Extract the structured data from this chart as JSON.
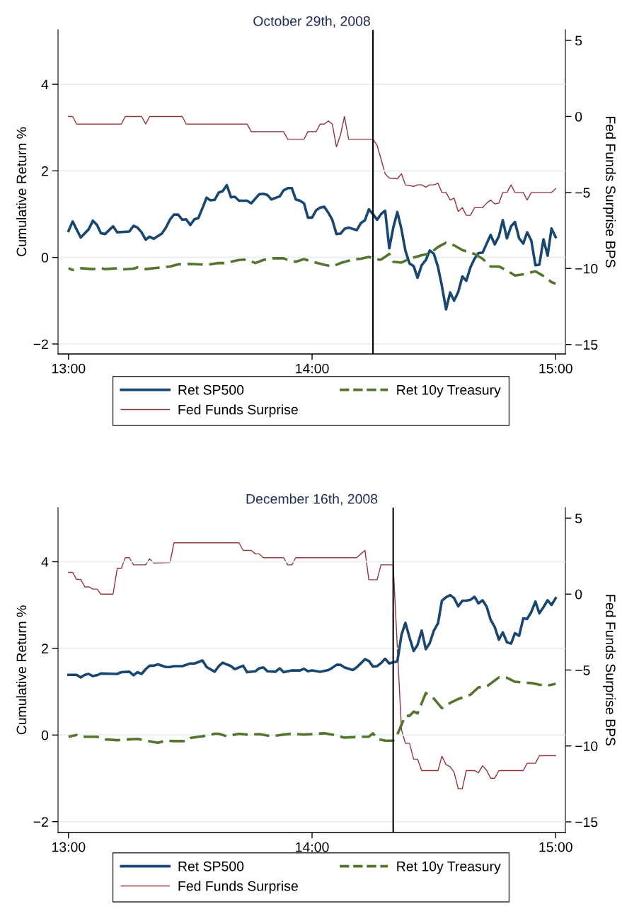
{
  "chart_data": [
    {
      "type": "line",
      "title": "October 29th, 2008",
      "ylabel": "Cumulative Return %",
      "y2label": "Fed Funds Surprise BPS",
      "xlim": [
        12.957,
        15.04
      ],
      "xticks": [
        {
          "value": 13,
          "label": "13:00"
        },
        {
          "value": 14,
          "label": "14:00"
        },
        {
          "value": 15,
          "label": "15:00"
        }
      ],
      "ylim": [
        -2.23,
        5.26
      ],
      "yticks": [
        {
          "value": -2,
          "label": "−2"
        },
        0,
        2,
        4
      ],
      "y2lim": [
        -15.62,
        5.7
      ],
      "y2ticks": [
        {
          "value": -15,
          "label": "−15"
        },
        {
          "value": -10,
          "label": "−10"
        },
        {
          "value": -5,
          "label": "−5"
        },
        0,
        5
      ],
      "grid": "y",
      "legend": "bottom",
      "ref_lines": [
        {
          "axis": "x",
          "value": 14.25,
          "color": "#000000"
        }
      ],
      "series": [
        {
          "name": "Ret SP500",
          "color": "#1a476f",
          "line_style": "solid",
          "x": [
            13,
            13.017,
            13.05,
            13.083,
            13.1,
            13.117,
            13.133,
            13.15,
            13.183,
            13.2,
            13.25,
            13.267,
            13.283,
            13.3,
            13.317,
            13.333,
            13.35,
            13.383,
            13.4,
            13.417,
            13.433,
            13.45,
            13.467,
            13.483,
            13.5,
            13.517,
            13.533,
            13.55,
            13.567,
            13.583,
            13.6,
            13.617,
            13.633,
            13.65,
            13.667,
            13.683,
            13.7,
            13.733,
            13.75,
            13.783,
            13.8,
            13.817,
            13.833,
            13.867,
            13.883,
            13.9,
            13.917,
            13.933,
            13.95,
            13.967,
            13.983,
            14,
            14.017,
            14.033,
            14.05,
            14.067,
            14.083,
            14.1,
            14.117,
            14.133,
            14.15,
            14.183,
            14.2,
            14.217,
            14.233,
            14.25,
            14.267,
            14.283,
            14.3,
            14.317,
            14.333,
            14.35,
            14.367,
            14.383,
            14.4,
            14.417,
            14.433,
            14.45,
            14.467,
            14.483,
            14.5,
            14.517,
            14.533,
            14.55,
            14.567,
            14.583,
            14.6,
            14.617,
            14.633,
            14.65,
            14.667,
            14.683,
            14.7,
            14.717,
            14.733,
            14.75,
            14.767,
            14.783,
            14.8,
            14.817,
            14.833,
            14.85,
            14.867,
            14.883,
            14.9,
            14.917,
            14.933,
            14.95,
            14.967,
            14.983,
            15
          ],
          "values": [
            0.61,
            0.83,
            0.46,
            0.65,
            0.85,
            0.75,
            0.56,
            0.54,
            0.72,
            0.58,
            0.6,
            0.73,
            0.69,
            0.58,
            0.41,
            0.48,
            0.43,
            0.55,
            0.69,
            0.88,
            0.99,
            0.99,
            0.87,
            0.88,
            0.75,
            0.88,
            0.91,
            1.14,
            1.38,
            1.32,
            1.33,
            1.5,
            1.53,
            1.67,
            1.39,
            1.4,
            1.31,
            1.31,
            1.25,
            1.46,
            1.47,
            1.44,
            1.34,
            1.41,
            1.55,
            1.6,
            1.6,
            1.34,
            1.31,
            1.25,
            0.92,
            0.92,
            1.09,
            1.15,
            1.17,
            1.03,
            0.87,
            0.54,
            0.55,
            0.66,
            0.69,
            0.63,
            0.79,
            0.86,
            1.11,
            1.0,
            0.87,
            1.0,
            1.08,
            0.21,
            0.68,
            1.05,
            0.65,
            0.16,
            -0.14,
            -0.2,
            -0.47,
            -0.18,
            -0.06,
            0.16,
            0.08,
            -0.22,
            -0.66,
            -1.2,
            -0.81,
            -1.0,
            -0.8,
            -0.44,
            -0.54,
            -0.23,
            -0.03,
            0.1,
            0.11,
            0.32,
            0.52,
            0.3,
            0.49,
            0.86,
            0.44,
            0.72,
            0.82,
            0.44,
            0.32,
            0.58,
            0.39,
            -0.18,
            -0.17,
            0.42,
            0.04,
            0.67,
            0.47
          ]
        },
        {
          "name": "Ret 10y Treasury",
          "color": "#55752f",
          "line_style": "dashed",
          "x": [
            13,
            13.017,
            13.05,
            13.1,
            13.133,
            13.15,
            13.2,
            13.217,
            13.267,
            13.283,
            13.317,
            13.367,
            13.417,
            13.45,
            13.5,
            13.567,
            13.617,
            13.65,
            13.667,
            13.7,
            13.733,
            13.767,
            13.8,
            13.833,
            13.883,
            13.9,
            13.933,
            13.967,
            14,
            14.05,
            14.083,
            14.117,
            14.167,
            14.2,
            14.233,
            14.267,
            14.283,
            14.317,
            14.333,
            14.367,
            14.4,
            14.45,
            14.483,
            14.517,
            14.55,
            14.583,
            14.617,
            14.667,
            14.7,
            14.733,
            14.767,
            14.8,
            14.833,
            14.867,
            14.917,
            14.95,
            14.983,
            15
          ],
          "values": [
            -0.25,
            -0.29,
            -0.25,
            -0.27,
            -0.25,
            -0.27,
            -0.25,
            -0.28,
            -0.26,
            -0.23,
            -0.27,
            -0.24,
            -0.21,
            -0.16,
            -0.15,
            -0.17,
            -0.13,
            -0.13,
            -0.1,
            -0.06,
            -0.05,
            -0.13,
            -0.06,
            -0.02,
            -0.02,
            -0.06,
            -0.1,
            -0.04,
            -0.1,
            -0.17,
            -0.21,
            -0.13,
            -0.05,
            -0.03,
            0.01,
            -0.05,
            -0.05,
            0.08,
            -0.1,
            -0.12,
            -0.03,
            0.05,
            0.09,
            0.24,
            0.34,
            0.28,
            0.17,
            0.08,
            -0.03,
            -0.21,
            -0.21,
            -0.3,
            -0.42,
            -0.39,
            -0.32,
            -0.43,
            -0.57,
            -0.61
          ]
        },
        {
          "name": "Fed Funds Surprise",
          "color": "#90353b",
          "line_style": "solid",
          "axis": "y2",
          "x": [
            13,
            13.017,
            13.033,
            13.217,
            13.233,
            13.3,
            13.317,
            13.333,
            13.467,
            13.483,
            13.733,
            13.75,
            13.883,
            13.9,
            13.967,
            13.983,
            14.017,
            14.033,
            14.05,
            14.067,
            14.083,
            14.1,
            14.117,
            14.133,
            14.15,
            14.25,
            14.267,
            14.3,
            14.317,
            14.35,
            14.367,
            14.383,
            14.417,
            14.433,
            14.45,
            14.467,
            14.483,
            14.5,
            14.517,
            14.533,
            14.55,
            14.567,
            14.583,
            14.6,
            14.617,
            14.633,
            14.65,
            14.667,
            14.7,
            14.717,
            14.733,
            14.75,
            14.767,
            14.783,
            14.8,
            14.817,
            14.833,
            14.867,
            14.883,
            14.9,
            14.983,
            15
          ],
          "values": [
            0,
            0,
            -0.5,
            -0.5,
            0,
            0,
            -0.5,
            0,
            0,
            -0.5,
            -0.5,
            -1.0,
            -1.0,
            -1.5,
            -1.5,
            -1.0,
            -1.0,
            -0.5,
            -0.5,
            -0.3,
            -0.5,
            -2.0,
            -1.2,
            0,
            -1.5,
            -1.5,
            -1.9,
            -3.77,
            -4.05,
            -4.1,
            -3.77,
            -4.5,
            -4.6,
            -4.5,
            -4.5,
            -4.65,
            -4.5,
            -4.5,
            -4.4,
            -5.0,
            -5.0,
            -5.5,
            -5.37,
            -6.25,
            -6.0,
            -6.5,
            -6.5,
            -6.0,
            -6.0,
            -5.7,
            -5.5,
            -5.75,
            -5.7,
            -5.0,
            -5.0,
            -4.5,
            -5.0,
            -5.0,
            -5.5,
            -5.0,
            -5.0,
            -4.75
          ]
        }
      ]
    },
    {
      "type": "line",
      "title": "December 16th, 2008",
      "ylabel": "Cumulative Return %",
      "y2label": "Fed Funds Surprise BPS",
      "xlim": [
        12.957,
        15.04
      ],
      "xticks": [
        {
          "value": 13,
          "label": "13:00"
        },
        {
          "value": 14,
          "label": "14:00"
        },
        {
          "value": 15,
          "label": "15:00"
        }
      ],
      "ylim": [
        -2.25,
        5.25
      ],
      "yticks": [
        {
          "value": -2,
          "label": "−2"
        },
        0,
        2,
        4
      ],
      "y2lim": [
        -15.7,
        5.7
      ],
      "y2ticks": [
        {
          "value": -15,
          "label": "−15"
        },
        {
          "value": -10,
          "label": "−10"
        },
        {
          "value": -5,
          "label": "−5"
        },
        0,
        5
      ],
      "grid": "y",
      "legend": "bottom",
      "ref_lines": [
        {
          "axis": "x",
          "value": 14.333,
          "color": "#000000"
        }
      ],
      "series": [
        {
          "name": "Ret SP500",
          "color": "#1a476f",
          "line_style": "solid",
          "x": [
            13,
            13.033,
            13.05,
            13.067,
            13.083,
            13.1,
            13.117,
            13.133,
            13.2,
            13.217,
            13.25,
            13.267,
            13.283,
            13.3,
            13.317,
            13.333,
            13.35,
            13.367,
            13.4,
            13.417,
            13.433,
            13.467,
            13.5,
            13.517,
            13.55,
            13.567,
            13.6,
            13.617,
            13.633,
            13.667,
            13.683,
            13.717,
            13.733,
            13.767,
            13.783,
            13.8,
            13.817,
            13.85,
            13.867,
            13.883,
            13.917,
            13.95,
            13.967,
            13.983,
            14,
            14.033,
            14.067,
            14.083,
            14.1,
            14.117,
            14.133,
            14.167,
            14.183,
            14.217,
            14.233,
            14.25,
            14.267,
            14.283,
            14.3,
            14.317,
            14.333,
            14.35,
            14.367,
            14.383,
            14.4,
            14.417,
            14.433,
            14.45,
            14.467,
            14.483,
            14.5,
            14.517,
            14.533,
            14.55,
            14.567,
            14.583,
            14.6,
            14.617,
            14.633,
            14.65,
            14.667,
            14.683,
            14.7,
            14.717,
            14.733,
            14.75,
            14.767,
            14.783,
            14.8,
            14.817,
            14.833,
            14.85,
            14.867,
            14.883,
            14.9,
            14.917,
            14.933,
            14.95,
            14.967,
            14.983,
            15
          ],
          "values": [
            1.39,
            1.39,
            1.33,
            1.39,
            1.41,
            1.36,
            1.38,
            1.42,
            1.41,
            1.45,
            1.46,
            1.38,
            1.45,
            1.41,
            1.52,
            1.6,
            1.6,
            1.63,
            1.57,
            1.57,
            1.59,
            1.59,
            1.65,
            1.65,
            1.72,
            1.57,
            1.46,
            1.59,
            1.67,
            1.59,
            1.52,
            1.6,
            1.45,
            1.47,
            1.54,
            1.56,
            1.47,
            1.46,
            1.54,
            1.45,
            1.49,
            1.49,
            1.53,
            1.47,
            1.49,
            1.46,
            1.5,
            1.55,
            1.62,
            1.62,
            1.56,
            1.5,
            1.56,
            1.75,
            1.71,
            1.58,
            1.59,
            1.66,
            1.76,
            1.65,
            1.68,
            1.7,
            2.31,
            2.59,
            2.25,
            1.94,
            2.08,
            2.41,
            1.98,
            2.12,
            2.41,
            2.58,
            3.1,
            3.18,
            3.23,
            3.16,
            2.97,
            3.1,
            3.1,
            3.12,
            3.19,
            3.04,
            3.11,
            2.96,
            2.66,
            2.49,
            2.2,
            2.37,
            2.14,
            2.11,
            2.35,
            2.29,
            2.69,
            2.68,
            2.84,
            3.08,
            2.81,
            2.95,
            3.11,
            3.0,
            3.16
          ]
        },
        {
          "name": "Ret 10y Treasury",
          "color": "#55752f",
          "line_style": "dashed",
          "x": [
            13,
            13.033,
            13.067,
            13.117,
            13.15,
            13.2,
            13.25,
            13.283,
            13.317,
            13.367,
            13.4,
            13.433,
            13.483,
            13.5,
            13.533,
            13.55,
            13.6,
            13.617,
            13.65,
            13.7,
            13.733,
            13.783,
            13.833,
            13.883,
            13.917,
            13.967,
            14,
            14.05,
            14.083,
            14.133,
            14.2,
            14.233,
            14.25,
            14.267,
            14.3,
            14.333,
            14.35,
            14.383,
            14.4,
            14.417,
            14.433,
            14.467,
            14.5,
            14.533,
            14.567,
            14.6,
            14.633,
            14.65,
            14.683,
            14.717,
            14.767,
            14.8,
            14.833,
            14.867,
            14.9,
            14.933,
            14.967,
            15
          ],
          "values": [
            -0.04,
            0.0,
            -0.04,
            -0.04,
            -0.1,
            -0.12,
            -0.1,
            -0.09,
            -0.13,
            -0.18,
            -0.13,
            -0.14,
            -0.14,
            -0.07,
            -0.04,
            -0.03,
            0.03,
            0.03,
            -0.03,
            0.03,
            0.01,
            0.02,
            -0.03,
            0.01,
            0.03,
            0.01,
            0.02,
            0.04,
            0.01,
            -0.06,
            -0.04,
            -0.04,
            0.04,
            -0.09,
            -0.13,
            -0.13,
            0.01,
            0.45,
            0.44,
            0.54,
            0.5,
            0.97,
            0.84,
            0.62,
            0.74,
            0.83,
            0.9,
            0.93,
            1.1,
            1.12,
            1.33,
            1.32,
            1.23,
            1.21,
            1.2,
            1.16,
            1.14,
            1.18
          ]
        },
        {
          "name": "Fed Funds Surprise",
          "color": "#90353b",
          "line_style": "solid",
          "axis": "y2",
          "x": [
            13,
            13.017,
            13.033,
            13.05,
            13.067,
            13.083,
            13.1,
            13.117,
            13.133,
            13.183,
            13.2,
            13.217,
            13.233,
            13.25,
            13.267,
            13.317,
            13.333,
            13.35,
            13.417,
            13.433,
            13.7,
            13.717,
            13.75,
            13.767,
            13.783,
            13.8,
            13.883,
            13.9,
            13.917,
            13.933,
            14.183,
            14.217,
            14.233,
            14.267,
            14.283,
            14.333,
            14.367,
            14.383,
            14.4,
            14.417,
            14.433,
            14.45,
            14.517,
            14.533,
            14.55,
            14.567,
            14.583,
            14.6,
            14.617,
            14.633,
            14.667,
            14.683,
            14.7,
            14.717,
            14.733,
            14.75,
            14.767,
            14.867,
            14.883,
            14.917,
            14.933,
            15
          ],
          "values": [
            1.43,
            1.43,
            0.97,
            0.97,
            0.48,
            0.48,
            0.33,
            0.33,
            0,
            0,
            1.7,
            1.7,
            2.4,
            2.4,
            1.93,
            1.93,
            2.32,
            2.05,
            2.08,
            3.38,
            3.38,
            2.88,
            2.88,
            2.65,
            2.65,
            2.4,
            2.4,
            1.93,
            1.93,
            2.4,
            2.4,
            2.88,
            0.95,
            0.95,
            1.93,
            1.93,
            -8.93,
            -9.83,
            -9.83,
            -10.87,
            -10.87,
            -11.62,
            -11.62,
            -10.67,
            -11.23,
            -11.37,
            -11.73,
            -12.82,
            -12.82,
            -11.62,
            -11.62,
            -11.77,
            -11.3,
            -11.62,
            -12.12,
            -12.12,
            -11.62,
            -11.62,
            -11.14,
            -11.14,
            -10.64,
            -10.64
          ]
        }
      ]
    }
  ]
}
